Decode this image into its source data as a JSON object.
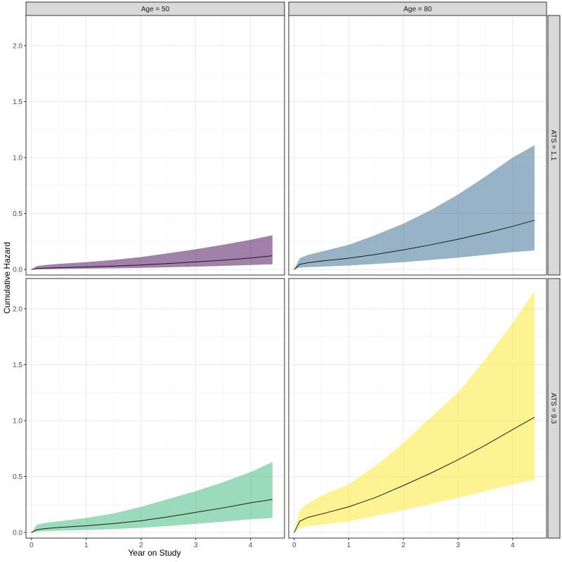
{
  "chart_data": {
    "type": "area",
    "xlabel": "Year on Study",
    "ylabel": "Cumulative Hazard",
    "xlim": [
      -0.1,
      4.62
    ],
    "ylim": [
      -0.05,
      2.27
    ],
    "x_ticks": [
      0,
      1,
      2,
      3,
      4
    ],
    "y_ticks": [
      0.0,
      0.5,
      1.0,
      1.5,
      2.0
    ],
    "x_tick_labels": [
      "0",
      "1",
      "2",
      "3",
      "4"
    ],
    "y_tick_labels": [
      "0.0",
      "0.5",
      "1.0",
      "1.5",
      "2.0"
    ],
    "grid": true,
    "col_facets": [
      "Age = 50",
      "Age = 80"
    ],
    "row_facets": [
      "ATS = 1.1",
      "ATS = 9.3"
    ],
    "panels": [
      {
        "row": 0,
        "col": 0,
        "color": "#440154",
        "x": [
          0,
          0.1,
          0.25,
          0.5,
          1,
          1.5,
          2,
          2.5,
          3,
          3.5,
          4,
          4.4
        ],
        "estimate": [
          0.0,
          0.008,
          0.011,
          0.015,
          0.022,
          0.03,
          0.04,
          0.053,
          0.067,
          0.083,
          0.102,
          0.122
        ],
        "lower": [
          0.0,
          0.002,
          0.003,
          0.004,
          0.007,
          0.01,
          0.014,
          0.019,
          0.025,
          0.032,
          0.04,
          0.046
        ],
        "upper": [
          0.0,
          0.03,
          0.04,
          0.05,
          0.065,
          0.085,
          0.11,
          0.145,
          0.18,
          0.22,
          0.265,
          0.305
        ]
      },
      {
        "row": 0,
        "col": 1,
        "color": "#31688e",
        "x": [
          0,
          0.1,
          0.25,
          0.5,
          1,
          1.5,
          2,
          2.5,
          3,
          3.5,
          4,
          4.4
        ],
        "estimate": [
          0.0,
          0.045,
          0.06,
          0.075,
          0.1,
          0.135,
          0.175,
          0.22,
          0.27,
          0.325,
          0.385,
          0.44
        ],
        "lower": [
          0.0,
          0.015,
          0.02,
          0.025,
          0.035,
          0.05,
          0.065,
          0.085,
          0.105,
          0.13,
          0.155,
          0.17
        ],
        "upper": [
          0.0,
          0.1,
          0.13,
          0.16,
          0.22,
          0.31,
          0.41,
          0.53,
          0.67,
          0.83,
          1.0,
          1.11
        ]
      },
      {
        "row": 1,
        "col": 0,
        "color": "#35b779",
        "x": [
          0,
          0.1,
          0.25,
          0.5,
          1,
          1.5,
          2,
          2.5,
          3,
          3.5,
          4,
          4.4
        ],
        "estimate": [
          0.0,
          0.025,
          0.035,
          0.045,
          0.06,
          0.08,
          0.105,
          0.14,
          0.18,
          0.22,
          0.265,
          0.295
        ],
        "lower": [
          0.0,
          0.008,
          0.012,
          0.016,
          0.022,
          0.03,
          0.042,
          0.058,
          0.077,
          0.097,
          0.118,
          0.13
        ],
        "upper": [
          0.0,
          0.07,
          0.085,
          0.1,
          0.13,
          0.17,
          0.23,
          0.3,
          0.37,
          0.45,
          0.54,
          0.63
        ]
      },
      {
        "row": 1,
        "col": 1,
        "color": "#fde725",
        "x": [
          0,
          0.1,
          0.25,
          0.5,
          1,
          1.5,
          2,
          2.5,
          3,
          3.5,
          4,
          4.4
        ],
        "estimate": [
          0.0,
          0.1,
          0.135,
          0.165,
          0.23,
          0.315,
          0.42,
          0.53,
          0.65,
          0.78,
          0.92,
          1.03
        ],
        "lower": [
          0.0,
          0.04,
          0.055,
          0.07,
          0.1,
          0.15,
          0.2,
          0.255,
          0.31,
          0.37,
          0.43,
          0.47
        ],
        "upper": [
          0.0,
          0.2,
          0.26,
          0.33,
          0.43,
          0.6,
          0.8,
          1.03,
          1.25,
          1.55,
          1.87,
          2.16
        ]
      }
    ]
  }
}
